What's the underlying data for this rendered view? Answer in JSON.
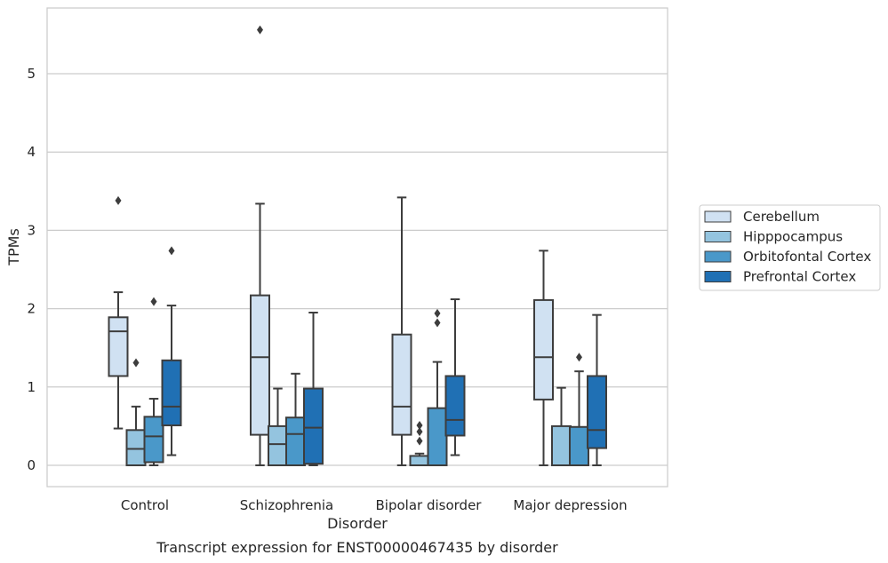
{
  "chart_data": {
    "type": "box",
    "title": "",
    "caption": "Transcript expression for ENST00000467435 by disorder",
    "xlabel": "Disorder",
    "ylabel": "TPMs",
    "ylim": [
      -0.27,
      5.85
    ],
    "yticks": [
      0,
      1,
      2,
      3,
      4,
      5
    ],
    "grid": "horizontal",
    "legend_position": "right",
    "categories": [
      "Control",
      "Schizophrenia",
      "Bipolar disorder",
      "Major depression"
    ],
    "series": [
      {
        "name": "Cerebellum",
        "color": "#d0e1f2",
        "boxes": [
          {
            "whisker_low": 0.47,
            "q1": 1.14,
            "median": 1.71,
            "q3": 1.89,
            "whisker_high": 2.21,
            "outliers": [
              3.38
            ]
          },
          {
            "whisker_low": 0.0,
            "q1": 0.39,
            "median": 1.38,
            "q3": 2.17,
            "whisker_high": 3.34,
            "outliers": [
              5.56
            ]
          },
          {
            "whisker_low": 0.0,
            "q1": 0.39,
            "median": 0.75,
            "q3": 1.67,
            "whisker_high": 3.42,
            "outliers": []
          },
          {
            "whisker_low": 0.0,
            "q1": 0.84,
            "median": 1.38,
            "q3": 2.11,
            "whisker_high": 2.74,
            "outliers": []
          }
        ]
      },
      {
        "name": "Hipppocampus",
        "color": "#94c4df",
        "boxes": [
          {
            "whisker_low": 0.0,
            "q1": 0.0,
            "median": 0.21,
            "q3": 0.45,
            "whisker_high": 0.75,
            "outliers": [
              1.31
            ]
          },
          {
            "whisker_low": 0.0,
            "q1": 0.0,
            "median": 0.27,
            "q3": 0.5,
            "whisker_high": 0.98,
            "outliers": []
          },
          {
            "whisker_low": 0.0,
            "q1": 0.0,
            "median": 0.0,
            "q3": 0.12,
            "whisker_high": 0.15,
            "outliers": [
              0.31,
              0.43,
              0.51
            ]
          },
          {
            "whisker_low": 0.0,
            "q1": 0.0,
            "median": 0.0,
            "q3": 0.5,
            "whisker_high": 0.99,
            "outliers": []
          }
        ]
      },
      {
        "name": "Orbitofontal Cortex",
        "color": "#4a98c9",
        "boxes": [
          {
            "whisker_low": 0.0,
            "q1": 0.04,
            "median": 0.37,
            "q3": 0.62,
            "whisker_high": 0.85,
            "outliers": [
              2.09
            ]
          },
          {
            "whisker_low": 0.0,
            "q1": 0.0,
            "median": 0.4,
            "q3": 0.61,
            "whisker_high": 1.17,
            "outliers": []
          },
          {
            "whisker_low": 0.0,
            "q1": 0.0,
            "median": 0.0,
            "q3": 0.73,
            "whisker_high": 1.32,
            "outliers": [
              1.82,
              1.94
            ]
          },
          {
            "whisker_low": 0.0,
            "q1": 0.0,
            "median": 0.0,
            "q3": 0.49,
            "whisker_high": 1.2,
            "outliers": [
              1.38
            ]
          }
        ]
      },
      {
        "name": "Prefrontal Cortex",
        "color": "#2070b4",
        "boxes": [
          {
            "whisker_low": 0.13,
            "q1": 0.51,
            "median": 0.75,
            "q3": 1.34,
            "whisker_high": 2.04,
            "outliers": [
              2.74
            ]
          },
          {
            "whisker_low": 0.0,
            "q1": 0.02,
            "median": 0.48,
            "q3": 0.98,
            "whisker_high": 1.95,
            "outliers": []
          },
          {
            "whisker_low": 0.13,
            "q1": 0.38,
            "median": 0.58,
            "q3": 1.14,
            "whisker_high": 2.12,
            "outliers": []
          },
          {
            "whisker_low": 0.0,
            "q1": 0.22,
            "median": 0.45,
            "q3": 1.14,
            "whisker_high": 1.92,
            "outliers": []
          }
        ]
      }
    ]
  }
}
